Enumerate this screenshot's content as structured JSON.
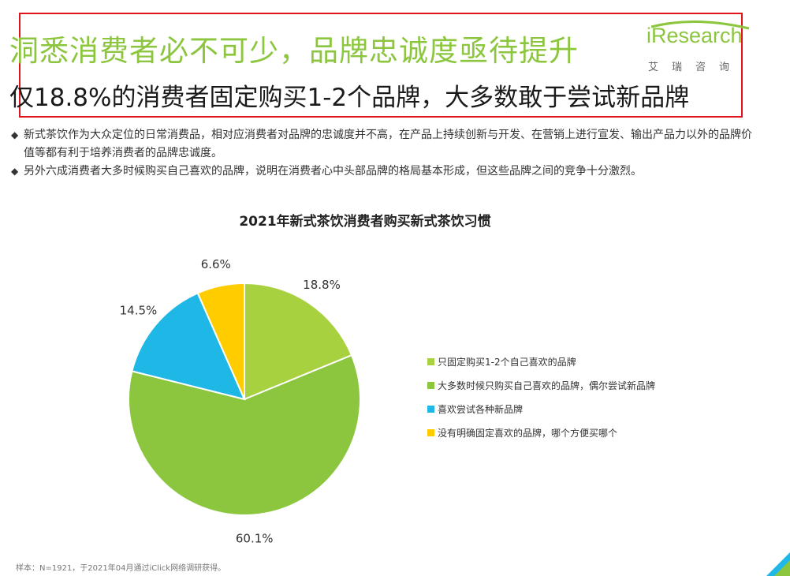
{
  "header": {
    "title": "洞悉消费者必不可少，品牌忠诚度亟待提升",
    "subtitle": "仅18.8%的消费者固定购买1-2个品牌，大多数敢于尝试新品牌"
  },
  "logo": {
    "word": "iResearch",
    "cn": "艾瑞咨询"
  },
  "bullets": [
    {
      "mark": "◆",
      "text": "新式茶饮作为大众定位的日常消费品，相对应消费者对品牌的忠诚度并不高，在产品上持续创新与开发、在营销上进行宣发、输出产品力以外的品牌价值等都有利于培养消费者的品牌忠诚度。"
    },
    {
      "mark": "◆",
      "text": "另外六成消费者大多时候购买自己喜欢的品牌，说明在消费者心中头部品牌的格局基本形成，但这些品牌之间的竞争十分激烈。"
    }
  ],
  "chart_data": {
    "type": "pie",
    "title": "2021年新式茶饮消费者购买新式茶饮习惯",
    "categories": [
      "只固定购买1-2个自己喜欢的品牌",
      "大多数时候只购买自己喜欢的品牌，偶尔尝试新品牌",
      "喜欢尝试各种新品牌",
      "没有明确固定喜欢的品牌，哪个方便买哪个"
    ],
    "values": [
      18.8,
      60.1,
      14.5,
      6.6
    ],
    "labels": [
      "18.8%",
      "60.1%",
      "14.5%",
      "6.6%"
    ],
    "colors": [
      "#a8d13f",
      "#8cc63f",
      "#1fb8e6",
      "#ffcc00"
    ],
    "start_angle": "12 o'clock",
    "direction": "clockwise",
    "legend_position": "right"
  },
  "footnote": "样本：N=1921，于2021年04月通过iClick网络调研获得。",
  "colors": {
    "accent": "#8cc63f",
    "highlight_border": "#e0141b"
  }
}
